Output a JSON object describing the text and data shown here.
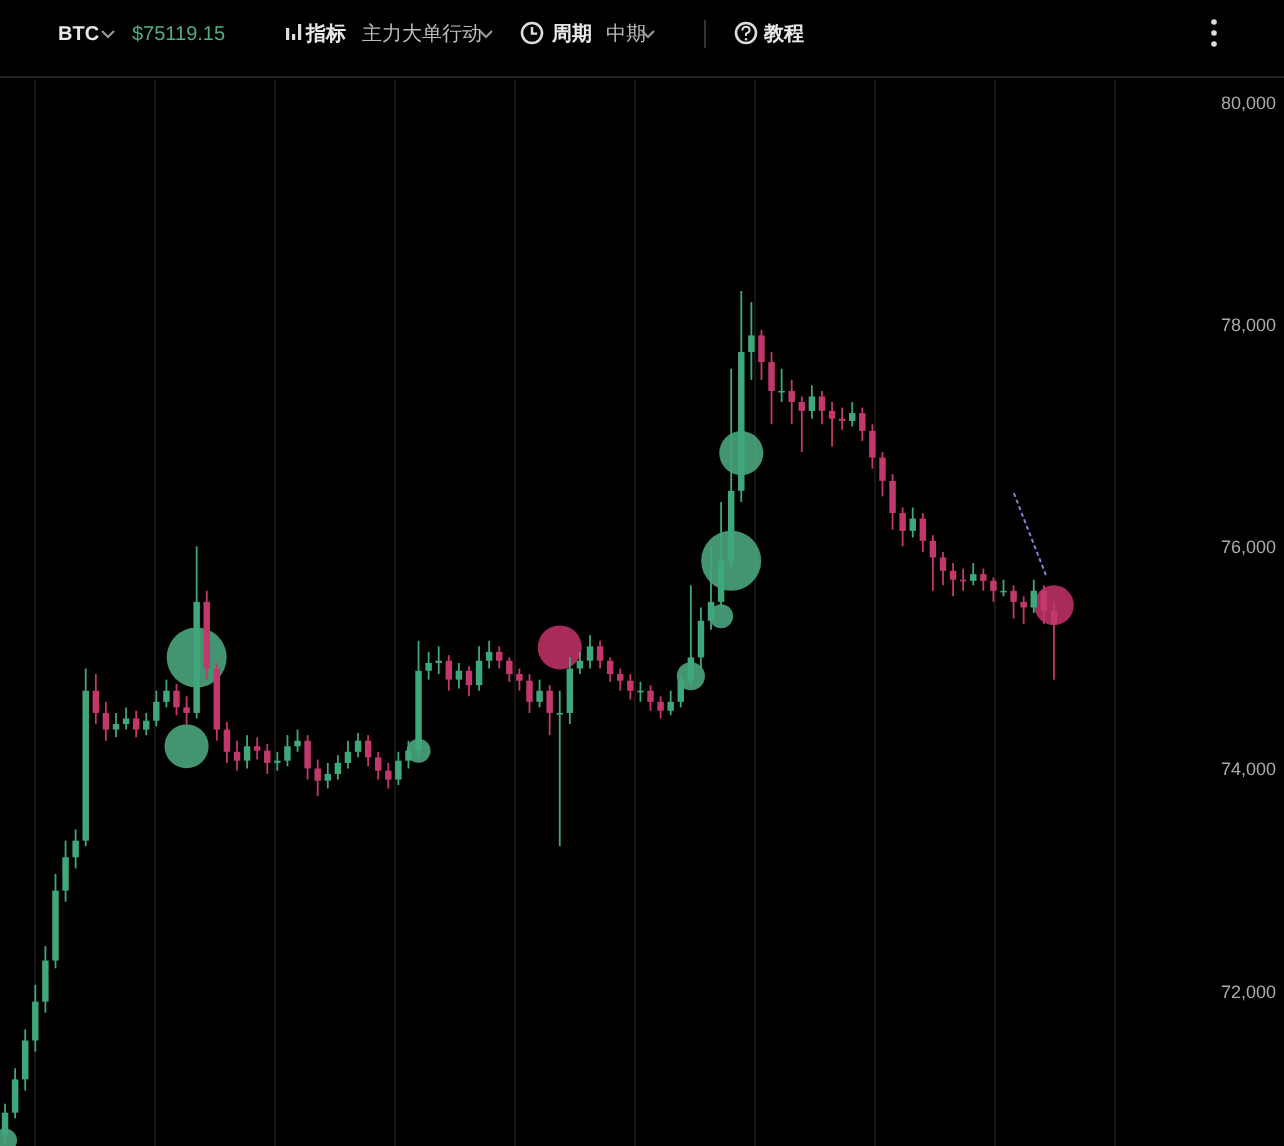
{
  "chart_data": {
    "type": "candlestick",
    "title": "BTC",
    "subtitle": "$75119.15",
    "annotations": [
      "指标",
      "主力大单行动",
      "周期",
      "中期",
      "教程"
    ],
    "categories": [
      null,
      null,
      null,
      null,
      null,
      null,
      null,
      null,
      null,
      null,
      null,
      null,
      null,
      null,
      null,
      null,
      null,
      null,
      null,
      null,
      null,
      null,
      null,
      null,
      null,
      null,
      null,
      null,
      null,
      null,
      null,
      null,
      null,
      null,
      null,
      null,
      null,
      null,
      null,
      null,
      null,
      null,
      null,
      null,
      null,
      null,
      null,
      null,
      null,
      null,
      null,
      null,
      null,
      null,
      null,
      null,
      null,
      null,
      null,
      null,
      null,
      null,
      null,
      null,
      null,
      null,
      null,
      null,
      null,
      null,
      null,
      null,
      null,
      null,
      null,
      null,
      null,
      null,
      null,
      null,
      null,
      null,
      null,
      null,
      null,
      null,
      null,
      null,
      null,
      null,
      null,
      null,
      null,
      null,
      null,
      null,
      null,
      null,
      null,
      null,
      null,
      null,
      null,
      null,
      null,
      null,
      null,
      null,
      null,
      null,
      null,
      null,
      null,
      null,
      null,
      null,
      null
    ],
    "ohlc": [
      [
        70700,
        70980,
        70620,
        70900
      ],
      [
        70900,
        71300,
        70850,
        71200
      ],
      [
        71200,
        71650,
        71100,
        71550
      ],
      [
        71550,
        72050,
        71450,
        71900
      ],
      [
        71900,
        72400,
        71800,
        72270
      ],
      [
        72270,
        73050,
        72200,
        72900
      ],
      [
        72900,
        73350,
        72800,
        73200
      ],
      [
        73200,
        73450,
        73100,
        73350
      ],
      [
        73350,
        74900,
        73300,
        74700
      ],
      [
        74700,
        74850,
        74400,
        74500
      ],
      [
        74500,
        74600,
        74250,
        74350
      ],
      [
        74350,
        74500,
        74280,
        74400
      ],
      [
        74400,
        74550,
        74350,
        74450
      ],
      [
        74450,
        74520,
        74280,
        74350
      ],
      [
        74350,
        74500,
        74300,
        74430
      ],
      [
        74430,
        74700,
        74380,
        74600
      ],
      [
        74600,
        74800,
        74550,
        74700
      ],
      [
        74700,
        74760,
        74480,
        74550
      ],
      [
        74550,
        74650,
        74400,
        74500
      ],
      [
        74500,
        76000,
        74450,
        75500
      ],
      [
        75500,
        75600,
        74800,
        74900
      ],
      [
        74900,
        74950,
        74250,
        74350
      ],
      [
        74350,
        74420,
        74050,
        74150
      ],
      [
        74150,
        74250,
        73980,
        74070
      ],
      [
        74070,
        74300,
        74000,
        74200
      ],
      [
        74200,
        74280,
        74080,
        74160
      ],
      [
        74160,
        74220,
        73950,
        74050
      ],
      [
        74050,
        74150,
        73980,
        74070
      ],
      [
        74070,
        74300,
        74020,
        74200
      ],
      [
        74200,
        74350,
        74150,
        74250
      ],
      [
        74250,
        74300,
        73900,
        74000
      ],
      [
        74000,
        74080,
        73750,
        73890
      ],
      [
        73890,
        74050,
        73820,
        73950
      ],
      [
        73950,
        74120,
        73900,
        74050
      ],
      [
        74050,
        74250,
        74000,
        74150
      ],
      [
        74150,
        74320,
        74100,
        74250
      ],
      [
        74250,
        74300,
        74020,
        74100
      ],
      [
        74100,
        74150,
        73900,
        73980
      ],
      [
        73980,
        74050,
        73820,
        73900
      ],
      [
        73900,
        74150,
        73850,
        74070
      ],
      [
        74070,
        74250,
        74000,
        74160
      ],
      [
        74160,
        75150,
        74100,
        74880
      ],
      [
        74880,
        75050,
        74800,
        74950
      ],
      [
        74950,
        75100,
        74850,
        74970
      ],
      [
        74970,
        75020,
        74700,
        74800
      ],
      [
        74800,
        74950,
        74720,
        74880
      ],
      [
        74880,
        74920,
        74650,
        74750
      ],
      [
        74750,
        75100,
        74700,
        74970
      ],
      [
        74970,
        75150,
        74900,
        75050
      ],
      [
        75050,
        75100,
        74900,
        74970
      ],
      [
        74970,
        75000,
        74780,
        74850
      ],
      [
        74850,
        74900,
        74700,
        74790
      ],
      [
        74790,
        74850,
        74500,
        74600
      ],
      [
        74600,
        74800,
        74550,
        74700
      ],
      [
        74700,
        74750,
        74300,
        74500
      ],
      [
        74500,
        74700,
        73300,
        74500
      ],
      [
        74500,
        75000,
        74400,
        74900
      ],
      [
        74900,
        75050,
        74850,
        74970
      ],
      [
        74970,
        75200,
        74900,
        75100
      ],
      [
        75100,
        75150,
        74900,
        74970
      ],
      [
        74970,
        75000,
        74780,
        74850
      ],
      [
        74850,
        74900,
        74700,
        74790
      ],
      [
        74790,
        74850,
        74620,
        74700
      ],
      [
        74700,
        74780,
        74600,
        74700
      ],
      [
        74700,
        74750,
        74520,
        74600
      ],
      [
        74600,
        74650,
        74450,
        74520
      ],
      [
        74520,
        74700,
        74480,
        74600
      ],
      [
        74600,
        74850,
        74550,
        74790
      ],
      [
        74790,
        75650,
        74750,
        75000
      ],
      [
        75000,
        75450,
        74900,
        75330
      ],
      [
        75330,
        76000,
        75250,
        75500
      ],
      [
        75500,
        76400,
        75450,
        75870
      ],
      [
        75870,
        77600,
        75800,
        76500
      ],
      [
        76500,
        78300,
        76400,
        77750
      ],
      [
        77750,
        78200,
        77500,
        77900
      ],
      [
        77900,
        77950,
        77500,
        77660
      ],
      [
        77660,
        77750,
        77100,
        77400
      ],
      [
        77400,
        77600,
        77300,
        77400
      ],
      [
        77400,
        77500,
        77100,
        77300
      ],
      [
        77300,
        77350,
        76850,
        77220
      ],
      [
        77220,
        77450,
        77150,
        77350
      ],
      [
        77350,
        77400,
        77100,
        77220
      ],
      [
        77220,
        77300,
        76900,
        77150
      ],
      [
        77150,
        77250,
        77050,
        77130
      ],
      [
        77130,
        77300,
        77080,
        77200
      ],
      [
        77200,
        77250,
        76950,
        77040
      ],
      [
        77040,
        77100,
        76700,
        76800
      ],
      [
        76800,
        76850,
        76450,
        76590
      ],
      [
        76590,
        76650,
        76150,
        76300
      ],
      [
        76300,
        76350,
        76000,
        76140
      ],
      [
        76140,
        76350,
        76080,
        76250
      ],
      [
        76250,
        76300,
        75950,
        76050
      ],
      [
        76050,
        76100,
        75600,
        75900
      ],
      [
        75900,
        75950,
        75650,
        75780
      ],
      [
        75780,
        75850,
        75550,
        75700
      ],
      [
        75700,
        75800,
        75600,
        75690
      ],
      [
        75690,
        75850,
        75650,
        75750
      ],
      [
        75750,
        75800,
        75600,
        75690
      ],
      [
        75690,
        75720,
        75500,
        75600
      ],
      [
        75600,
        75700,
        75550,
        75600
      ],
      [
        75600,
        75650,
        75350,
        75500
      ],
      [
        75500,
        75550,
        75300,
        75450
      ],
      [
        75450,
        75700,
        75400,
        75600
      ],
      [
        75600,
        75650,
        75300,
        75420
      ],
      [
        75420,
        75500,
        74800,
        75300
      ],
      null,
      null,
      null,
      null,
      null,
      null,
      null,
      null,
      null,
      null,
      null,
      null
    ],
    "series": [
      {
        "type": "bubble",
        "color": "#4fae84",
        "values": [
          70650,
          null,
          null,
          null,
          null,
          null,
          null,
          null,
          null,
          null,
          null,
          null,
          null,
          null,
          null,
          null,
          null,
          null,
          74200,
          75000,
          null,
          null,
          null,
          null,
          null,
          null,
          null,
          null,
          null,
          null,
          null,
          null,
          null,
          null,
          null,
          null,
          null,
          null,
          null,
          null,
          null,
          74160,
          null,
          null,
          null,
          null,
          null,
          null,
          null,
          null,
          null,
          null,
          null,
          null,
          null,
          null,
          null,
          null,
          null,
          null,
          null,
          null,
          null,
          null,
          null,
          null,
          null,
          null,
          74830,
          null,
          null,
          75370,
          75870,
          76840,
          null,
          null,
          null,
          null,
          null,
          null,
          null,
          null,
          null,
          null,
          null,
          null,
          null,
          null,
          null,
          null,
          null,
          null,
          null,
          null,
          null,
          null,
          null,
          null,
          null,
          null,
          null,
          null,
          null,
          null,
          null,
          null,
          null,
          null,
          null,
          null,
          null,
          null,
          null,
          null,
          null,
          null,
          null
        ],
        "sizes": [
          0.16,
          null,
          null,
          null,
          null,
          null,
          null,
          null,
          null,
          null,
          null,
          null,
          null,
          null,
          null,
          null,
          null,
          null,
          0.54,
          1,
          null,
          null,
          null,
          null,
          null,
          null,
          null,
          null,
          null,
          null,
          null,
          null,
          null,
          null,
          null,
          null,
          null,
          null,
          null,
          null,
          null,
          0.16,
          null,
          null,
          null,
          null,
          null,
          null,
          null,
          null,
          null,
          null,
          null,
          null,
          null,
          null,
          null,
          null,
          null,
          null,
          null,
          null,
          null,
          null,
          null,
          null,
          null,
          null,
          0.22,
          null,
          null,
          0.16,
          1,
          0.54,
          null,
          null,
          null,
          null,
          null,
          null,
          null,
          null,
          null,
          null,
          null,
          null,
          null,
          null,
          null,
          null,
          null,
          null,
          null,
          null,
          null,
          null,
          null,
          null,
          null,
          null,
          null,
          null,
          null,
          null,
          null,
          null,
          null,
          null,
          null,
          null,
          null,
          null,
          null,
          null,
          null,
          null,
          null
        ]
      },
      {
        "type": "bubble",
        "color": "#c7336b",
        "values": [
          null,
          null,
          null,
          null,
          null,
          null,
          null,
          null,
          null,
          null,
          null,
          null,
          null,
          null,
          null,
          null,
          null,
          null,
          null,
          null,
          null,
          null,
          null,
          null,
          null,
          null,
          null,
          null,
          null,
          null,
          null,
          null,
          null,
          null,
          null,
          null,
          null,
          null,
          null,
          null,
          null,
          null,
          null,
          null,
          null,
          null,
          null,
          null,
          null,
          null,
          null,
          null,
          null,
          null,
          null,
          75090,
          null,
          null,
          null,
          null,
          null,
          null,
          null,
          null,
          null,
          null,
          null,
          null,
          null,
          null,
          null,
          null,
          null,
          null,
          null,
          null,
          null,
          null,
          null,
          null,
          null,
          null,
          null,
          null,
          null,
          null,
          null,
          null,
          null,
          null,
          null,
          null,
          null,
          null,
          null,
          null,
          null,
          null,
          null,
          null,
          null,
          null,
          null,
          null,
          75470,
          null,
          null,
          null,
          null,
          null,
          null,
          null,
          null,
          null,
          null,
          null,
          null
        ],
        "sizes": [
          null,
          null,
          null,
          null,
          null,
          null,
          null,
          null,
          null,
          null,
          null,
          null,
          null,
          null,
          null,
          null,
          null,
          null,
          null,
          null,
          null,
          null,
          null,
          null,
          null,
          null,
          null,
          null,
          null,
          null,
          null,
          null,
          null,
          null,
          null,
          null,
          null,
          null,
          null,
          null,
          null,
          null,
          null,
          null,
          null,
          null,
          null,
          null,
          null,
          null,
          null,
          null,
          null,
          null,
          null,
          0.54,
          null,
          null,
          null,
          null,
          null,
          null,
          null,
          null,
          null,
          null,
          null,
          null,
          null,
          null,
          null,
          null,
          null,
          null,
          null,
          null,
          null,
          null,
          null,
          null,
          null,
          null,
          null,
          null,
          null,
          null,
          null,
          null,
          null,
          null,
          null,
          null,
          null,
          null,
          null,
          null,
          null,
          null,
          null,
          null,
          null,
          null,
          null,
          null,
          0.44,
          null,
          null,
          null,
          null,
          null,
          null,
          null,
          null,
          null,
          null,
          null,
          null
        ]
      }
    ],
    "ylim": [
      70600,
      80200
    ],
    "yticks": [
      {
        "value": 72000,
        "label": "72,000"
      },
      {
        "value": 74000,
        "label": "74,000"
      },
      {
        "value": 76000,
        "label": "76,000"
      },
      {
        "value": 78000,
        "label": "78,000"
      },
      {
        "value": 80000,
        "label": "80,000"
      }
    ]
  }
}
